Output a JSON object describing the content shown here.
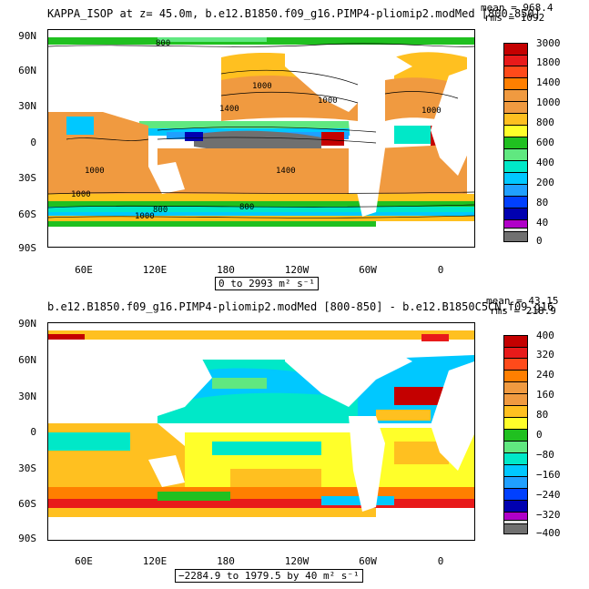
{
  "panel1": {
    "title": "KAPPA_ISOP at z=  45.0m, b.e12.B1850.f09_g16.PIMP4-pliomip2.modMed [800-850]",
    "mean": "mean = 968.4",
    "rms": "rms = 1092",
    "range": "0 to 2993 m² s⁻¹",
    "colorbar": [
      "3000",
      "1800",
      "1400",
      "1000",
      "800",
      "600",
      "400",
      "200",
      "80",
      "40",
      "0"
    ],
    "contour_labels": [
      "800",
      "1000",
      "1400",
      "1000",
      "1000",
      "1400",
      "1000",
      "800",
      "1000",
      "1000",
      "800"
    ],
    "colors": [
      "#c40000",
      "#e81a1a",
      "#ff4a1a",
      "#ff7f00",
      "#f09a40",
      "#ffc020",
      "#ffff2a",
      "#20c020",
      "#60e880",
      "#00e8c8",
      "#00c8ff",
      "#20a0ff",
      "#0040ff",
      "#0000b0",
      "#b000c8",
      "#e0e0e0",
      "#707070"
    ]
  },
  "panel2": {
    "title": "b.e12.B1850.f09_g16.PIMP4-pliomip2.modMed [800-850] - b.e12.B1850C5CN.f09_g16",
    "mean": "mean = 43.15",
    "rms": "rms = 218.9",
    "range": "−2284.9 to 1979.5 by 40 m² s⁻¹",
    "colorbar": [
      "400",
      "320",
      "240",
      "160",
      "80",
      "0",
      "−80",
      "−160",
      "−240",
      "−320",
      "−400"
    ],
    "colors": [
      "#c40000",
      "#e81a1a",
      "#ff4a1a",
      "#ff7f00",
      "#f09a40",
      "#ffc020",
      "#ffff2a",
      "#20c020",
      "#60e880",
      "#00e8c8",
      "#00c8ff",
      "#20a0ff",
      "#0040ff",
      "#0000b0",
      "#b000c8",
      "#e0e0e0",
      "#707070"
    ]
  },
  "axes": {
    "lat_labels": [
      "90N",
      "60N",
      "30N",
      "0",
      "30S",
      "60S",
      "90S"
    ],
    "lon_labels": [
      "60E",
      "120E",
      "180",
      "120W",
      "60W",
      "0"
    ]
  }
}
